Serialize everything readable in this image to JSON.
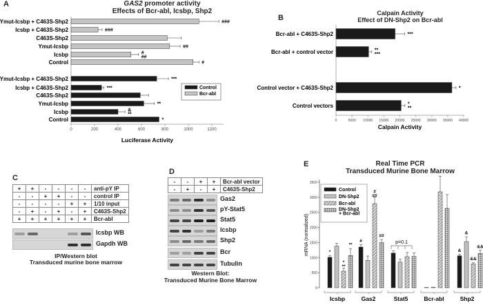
{
  "chart_data": [
    {
      "panel": "A",
      "type": "bar",
      "orientation": "horizontal",
      "title_italic": "GAS2",
      "title_rest": " promoter activity",
      "subtitle": "Effects of Bcr-abl, Icsbp, Shp2",
      "xlabel": "Luciferase Activity",
      "xlim": [
        0,
        1300
      ],
      "xticks": [
        0,
        200,
        400,
        600,
        800,
        1000,
        1200
      ],
      "legend": {
        "placement": "right",
        "entries": [
          "Control",
          "Bcr-abl"
        ]
      },
      "colors": {
        "Control": "#1a1a1a",
        "Bcr-abl": "#c4c4c4"
      },
      "groups": [
        {
          "series": "Bcr-abl",
          "categories": [
            "Ymut-Icsbp + C463S-Shp2",
            "Icsbp + C463S-Shp2",
            "C463S-Shp2",
            "Ymut-Icsbp",
            "Icsbp",
            "Control"
          ],
          "values": [
            1090,
            230,
            820,
            840,
            510,
            1040
          ],
          "err": [
            170,
            35,
            120,
            90,
            65,
            50
          ],
          "annotations": [
            "###",
            "###",
            "",
            "##",
            "#\n##",
            "#"
          ]
        },
        {
          "series": "Control",
          "categories": [
            "Ymut-Icsbp + C463S-Shp2",
            "Icsbp + C463S-Shp2",
            "C463S-Shp2",
            "Ymut-Icsbp",
            "Icsbp",
            "Control"
          ],
          "values": [
            730,
            260,
            590,
            620,
            400,
            750
          ],
          "err": [
            100,
            20,
            70,
            90,
            60,
            0
          ],
          "annotations": [
            "***",
            "***",
            "",
            "**",
            "&\n**",
            "*"
          ]
        }
      ]
    },
    {
      "panel": "B",
      "type": "bar",
      "orientation": "horizontal",
      "title": "Calpain Activity",
      "subtitle": "Effect of DN-Shp2 on Bcr-abl",
      "xlabel": "Calpain Activity",
      "xlim": [
        0,
        40000
      ],
      "xticks": [
        0,
        5000,
        10000,
        15000,
        20000,
        25000,
        30000,
        35000,
        40000
      ],
      "color": "#1a1a1a",
      "categories": [
        "Bcr-abl + C463S-Shp2",
        "Bcr-abl + control vector",
        "Control vector + C463S-Shp2",
        "Control vectors"
      ],
      "values": [
        18500,
        10200,
        36300,
        20400
      ],
      "err": [
        3000,
        1000,
        1300,
        1200
      ],
      "annotations": [
        "***",
        "**\n***",
        "*",
        "*\n**"
      ]
    },
    {
      "panel": "E",
      "type": "bar",
      "orientation": "vertical",
      "title": "Real Time PCR",
      "subtitle": "Transduced Murine Bone Marrow",
      "ylabel": "mRNA (normalized)",
      "ylim": [
        0,
        3500
      ],
      "yticks": [
        0,
        500,
        1000,
        1500,
        2000,
        2500,
        3000,
        3500
      ],
      "categories": [
        "Icsbp",
        "Gas2",
        "Stat5",
        "Bcr-abl",
        "Shp2"
      ],
      "legend": {
        "placement": "top-left"
      },
      "series": [
        {
          "name": "Control",
          "pattern": "solid",
          "values": [
            1010,
            1350,
            1150,
            10,
            1060
          ],
          "err": [
            50,
            80,
            70,
            0,
            50
          ]
        },
        {
          "name": "DN-Shp2",
          "pattern": "light",
          "values": [
            1380,
            910,
            850,
            20,
            1530
          ],
          "err": [
            90,
            140,
            90,
            0,
            160
          ]
        },
        {
          "name": "Bcr-abl",
          "pattern": "hatched",
          "values": [
            550,
            2790,
            1030,
            3180,
            790
          ],
          "err": [
            100,
            210,
            140,
            520,
            40
          ]
        },
        {
          "name": "DN-Shp2\n+ Bcr-abl",
          "pattern": "checkered",
          "values": [
            1070,
            1500,
            1040,
            2630,
            1140
          ],
          "err": [
            230,
            100,
            120,
            460,
            100
          ]
        }
      ],
      "annotations": [
        [
          "*",
          "",
          "*\n**",
          "**"
        ],
        [
          "#",
          "",
          "#\n##",
          "##"
        ],
        [
          "",
          "",
          "",
          ""
        ],
        [
          "",
          "",
          "",
          ""
        ],
        [
          "&",
          "&",
          "&&",
          "&&"
        ]
      ],
      "bracket_label": "p=0.1"
    }
  ],
  "panelC": {
    "label": "C",
    "rows": [
      {
        "label": "anti-pY IP",
        "signs": [
          "+",
          "+",
          "-",
          "-",
          "-",
          "-"
        ]
      },
      {
        "label": "control IP",
        "signs": [
          "-",
          "-",
          "+",
          "+",
          "-",
          "-"
        ]
      },
      {
        "label": "1/10 input",
        "signs": [
          "-",
          "-",
          "-",
          "-",
          "+",
          "+"
        ]
      },
      {
        "label": "C463S-Shp2",
        "signs": [
          "-",
          "+",
          "-",
          "+",
          "-",
          "+"
        ]
      },
      {
        "label": "Bcr-abl",
        "signs": [
          "+",
          "+",
          "+",
          "+",
          "+",
          "+"
        ]
      }
    ],
    "blots": [
      {
        "label": "Icsbp WB",
        "bands": [
          0.3,
          0.6,
          0,
          0,
          0.3,
          0.7
        ]
      },
      {
        "label": "Gapdh WB",
        "bands": [
          0,
          0,
          0,
          0,
          0.9,
          0.9
        ]
      }
    ],
    "caption1": "IP/Western blot",
    "caption2": "Transduced murine bone marrow"
  },
  "panelD": {
    "label": "D",
    "rows": [
      {
        "label": "Bcr-abl vector",
        "signs": [
          "-",
          "-",
          "+",
          "+"
        ]
      },
      {
        "label": "C463S-Shp2",
        "signs": [
          "-",
          "+",
          "-",
          "+"
        ]
      }
    ],
    "blots": [
      {
        "label": "Gas2",
        "bands": [
          0.5,
          0.6,
          0.9,
          0.4
        ]
      },
      {
        "label": "pY-Stat5",
        "bands": [
          0.4,
          0.4,
          0.9,
          0.7
        ]
      },
      {
        "label": "Stat5",
        "bands": [
          0.8,
          0.8,
          1,
          1
        ]
      },
      {
        "label": "Icsbp",
        "bands": [
          0.8,
          0.9,
          0.3,
          0.5
        ]
      },
      {
        "label": "Shp2",
        "bands": [
          0.4,
          0.6,
          0.5,
          0.6
        ]
      },
      {
        "label": "Bcr",
        "bands": [
          0.3,
          0.3,
          0.8,
          0.8
        ]
      },
      {
        "label": "Tubulin",
        "bands": [
          0.8,
          0.8,
          0.8,
          0.8
        ]
      }
    ],
    "caption1": "Western Blot:",
    "caption2": "Transduced Murine Bone Marrow"
  }
}
